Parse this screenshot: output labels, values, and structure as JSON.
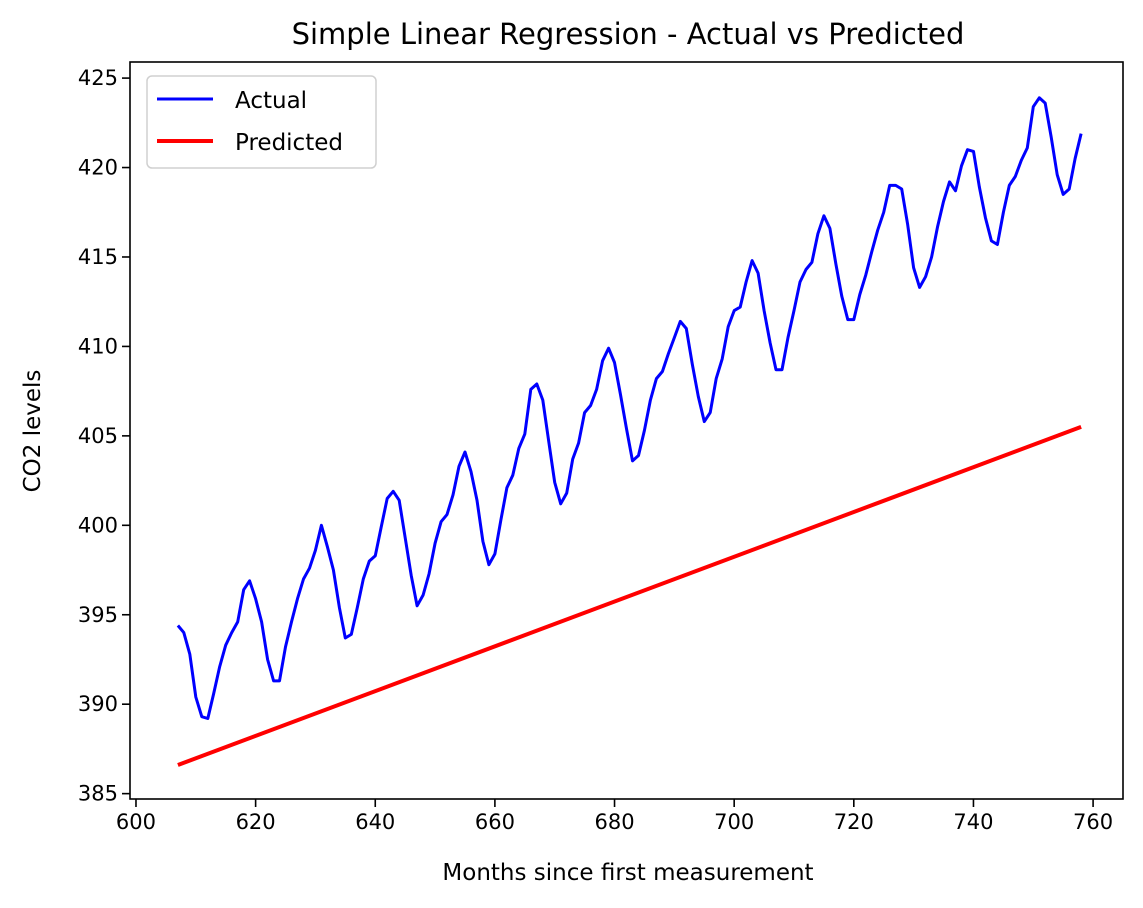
{
  "chart_data": {
    "type": "line",
    "title": "Simple Linear Regression - Actual vs Predicted",
    "xlabel": "Months since first measurement",
    "ylabel": "CO2 levels",
    "xlim": [
      599,
      765
    ],
    "ylim": [
      384.7,
      425.9
    ],
    "xticks": [
      600,
      620,
      640,
      660,
      680,
      700,
      720,
      740,
      760
    ],
    "yticks": [
      385,
      390,
      395,
      400,
      405,
      410,
      415,
      420,
      425
    ],
    "grid": false,
    "legend": {
      "position": "upper-left",
      "entries": [
        "Actual",
        "Predicted"
      ]
    },
    "series": [
      {
        "name": "Actual",
        "color": "#0000ff",
        "x": [
          607,
          608,
          609,
          610,
          611,
          612,
          613,
          614,
          615,
          616,
          617,
          618,
          619,
          620,
          621,
          622,
          623,
          624,
          625,
          626,
          627,
          628,
          629,
          630,
          631,
          632,
          633,
          634,
          635,
          636,
          637,
          638,
          639,
          640,
          641,
          642,
          643,
          644,
          645,
          646,
          647,
          648,
          649,
          650,
          651,
          652,
          653,
          654,
          655,
          656,
          657,
          658,
          659,
          660,
          661,
          662,
          663,
          664,
          665,
          666,
          667,
          668,
          669,
          670,
          671,
          672,
          673,
          674,
          675,
          676,
          677,
          678,
          679,
          680,
          681,
          682,
          683,
          684,
          685,
          686,
          687,
          688,
          689,
          690,
          691,
          692,
          693,
          694,
          695,
          696,
          697,
          698,
          699,
          700,
          701,
          702,
          703,
          704,
          705,
          706,
          707,
          708,
          709,
          710,
          711,
          712,
          713,
          714,
          715,
          716,
          717,
          718,
          719,
          720,
          721,
          722,
          723,
          724,
          725,
          726,
          727,
          728,
          729,
          730,
          731,
          732,
          733,
          734,
          735,
          736,
          737,
          738,
          739,
          740,
          741,
          742,
          743,
          744,
          745,
          746,
          747,
          748,
          749,
          750,
          751,
          752,
          753,
          754,
          755,
          756,
          757,
          758
        ],
        "y": [
          394.4,
          394.0,
          392.8,
          390.4,
          389.3,
          389.2,
          390.6,
          392.1,
          393.3,
          394.0,
          394.6,
          396.4,
          396.9,
          395.9,
          394.6,
          392.5,
          391.3,
          391.3,
          393.2,
          394.6,
          395.9,
          397.0,
          397.6,
          398.6,
          400.0,
          398.8,
          397.5,
          395.4,
          393.7,
          393.9,
          395.4,
          397.0,
          398.0,
          398.3,
          399.9,
          401.5,
          401.9,
          401.4,
          399.3,
          397.2,
          395.5,
          396.1,
          397.3,
          399.0,
          400.2,
          400.6,
          401.7,
          403.3,
          404.1,
          403.0,
          401.4,
          399.1,
          397.8,
          398.4,
          400.3,
          402.1,
          402.8,
          404.3,
          405.1,
          407.6,
          407.9,
          407.0,
          404.7,
          402.4,
          401.2,
          401.8,
          403.7,
          404.6,
          406.3,
          406.7,
          407.6,
          409.2,
          409.9,
          409.1,
          407.3,
          405.4,
          403.6,
          403.9,
          405.3,
          407.0,
          408.2,
          408.6,
          409.6,
          410.5,
          411.4,
          411.0,
          409.0,
          407.2,
          405.8,
          406.3,
          408.2,
          409.3,
          411.1,
          412.0,
          412.2,
          413.6,
          414.8,
          414.1,
          412.0,
          410.2,
          408.7,
          408.7,
          410.5,
          412.0,
          413.6,
          414.3,
          414.7,
          416.3,
          417.3,
          416.6,
          414.6,
          412.8,
          411.5,
          411.5,
          412.9,
          414.0,
          415.3,
          416.5,
          417.5,
          419.0,
          419.0,
          418.8,
          416.8,
          414.4,
          413.3,
          413.9,
          415.0,
          416.7,
          418.1,
          419.2,
          418.7,
          420.1,
          421.0,
          420.9,
          418.9,
          417.2,
          415.9,
          415.7,
          417.5,
          419.0,
          419.5,
          420.4,
          421.1,
          423.4,
          423.9,
          423.6,
          421.7,
          419.6,
          418.5,
          418.8,
          420.5,
          421.9
        ]
      },
      {
        "name": "Predicted",
        "color": "#ff0000",
        "x": [
          607,
          758
        ],
        "y": [
          386.6,
          405.5
        ]
      }
    ]
  }
}
